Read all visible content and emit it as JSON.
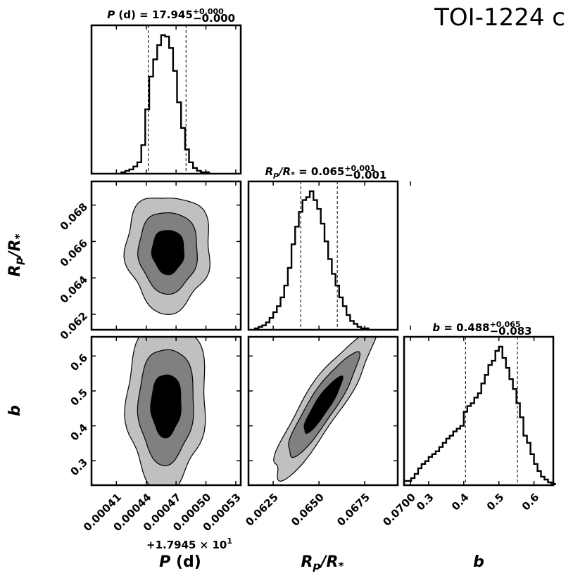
{
  "chart_data": {
    "type": "corner",
    "title": "TOI-1224 c",
    "parameters": [
      {
        "name": "P (d)",
        "symbol": "P",
        "unit": "(d)",
        "offset_label": "+1.7945 × 10",
        "offset_exp": "1",
        "median": "17.945",
        "err_plus": "+0.000",
        "err_minus": "−0.000",
        "title_suffix": "(d) = 17.945",
        "range": [
          0.000385,
          0.000535
        ],
        "ticks": [
          0.00041,
          0.00044,
          0.00047,
          0.0005,
          0.00053
        ],
        "tick_labels": [
          "0.00041",
          "0.00044",
          "0.00047",
          "0.00050",
          "0.00053"
        ],
        "quantile_lines": [
          0.000442,
          0.00048
        ]
      },
      {
        "name": "Rp/R*",
        "symbol": "R",
        "sub": "p",
        "denom": "/R",
        "denom_sub": "*",
        "median": "0.065",
        "err_plus": "+0.001",
        "err_minus": "−0.001",
        "range": [
          0.06115,
          0.0693
        ],
        "ticks": [
          0.062,
          0.064,
          0.066,
          0.068
        ],
        "tick_labels": [
          "0.062",
          "0.064",
          "0.066",
          "0.068"
        ],
        "hist_ticks": [
          0.0625,
          0.065,
          0.0675,
          0.07
        ],
        "hist_tick_labels": [
          "0.0625",
          "0.0650",
          "0.0675",
          "0.0700"
        ],
        "quantile_lines": [
          0.064,
          0.066
        ]
      },
      {
        "name": "b",
        "symbol": "b",
        "median": "0.488",
        "err_plus": "+0.065",
        "err_minus": "−0.083",
        "range": [
          0.23,
          0.655
        ],
        "ticks": [
          0.3,
          0.4,
          0.5,
          0.6
        ],
        "tick_labels": [
          "0.3",
          "0.4",
          "0.5",
          "0.6"
        ],
        "quantile_lines": [
          0.405,
          0.553
        ]
      }
    ],
    "histograms": [
      {
        "param": "P (d)",
        "bin_start": 0.000415,
        "bin_width": 4e-06,
        "counts": [
          1,
          2,
          3,
          5,
          8,
          20,
          45,
          68,
          80,
          90,
          97,
          96,
          88,
          72,
          50,
          32,
          17,
          8,
          4,
          2,
          1,
          1
        ]
      },
      {
        "param": "Rp/R*",
        "bin_start": 0.0615,
        "bin_width": 0.0002,
        "counts": [
          1,
          2,
          3,
          5,
          8,
          12,
          16,
          22,
          30,
          42,
          58,
          70,
          80,
          88,
          90,
          94,
          88,
          82,
          72,
          60,
          48,
          38,
          30,
          22,
          16,
          10,
          6,
          4,
          2,
          1,
          1
        ]
      },
      {
        "param": "b",
        "bin_start": 0.23,
        "bin_width": 0.01,
        "counts": [
          3,
          3,
          5,
          8,
          12,
          15,
          17,
          20,
          22,
          24,
          27,
          30,
          33,
          35,
          38,
          40,
          42,
          52,
          56,
          58,
          62,
          65,
          72,
          78,
          85,
          88,
          95,
          98,
          90,
          83,
          75,
          68,
          58,
          48,
          35,
          30,
          22,
          15,
          10,
          6,
          4,
          2,
          1
        ]
      }
    ],
    "contours": [
      {
        "x_param": "P (d)",
        "y_param": "Rp/R*",
        "center": [
          0.000462,
          0.06545
        ],
        "spread": [
          1.7e-05,
          0.00128
        ],
        "rho": 0.0
      },
      {
        "x_param": "P (d)",
        "y_param": "b",
        "center": [
          0.00046,
          0.46
        ],
        "spread": [
          1.6e-05,
          0.095
        ],
        "rho": 0.05
      },
      {
        "x_param": "Rp/R*",
        "y_param": "b",
        "center": [
          0.0652,
          0.46
        ],
        "spread": [
          0.0011,
          0.085
        ],
        "rho": 0.9
      }
    ],
    "contour_levels": [
      "1-sigma",
      "2-sigma",
      "3-sigma"
    ],
    "contour_colors": [
      "#000000",
      "#808080",
      "#c0c0c0"
    ]
  }
}
